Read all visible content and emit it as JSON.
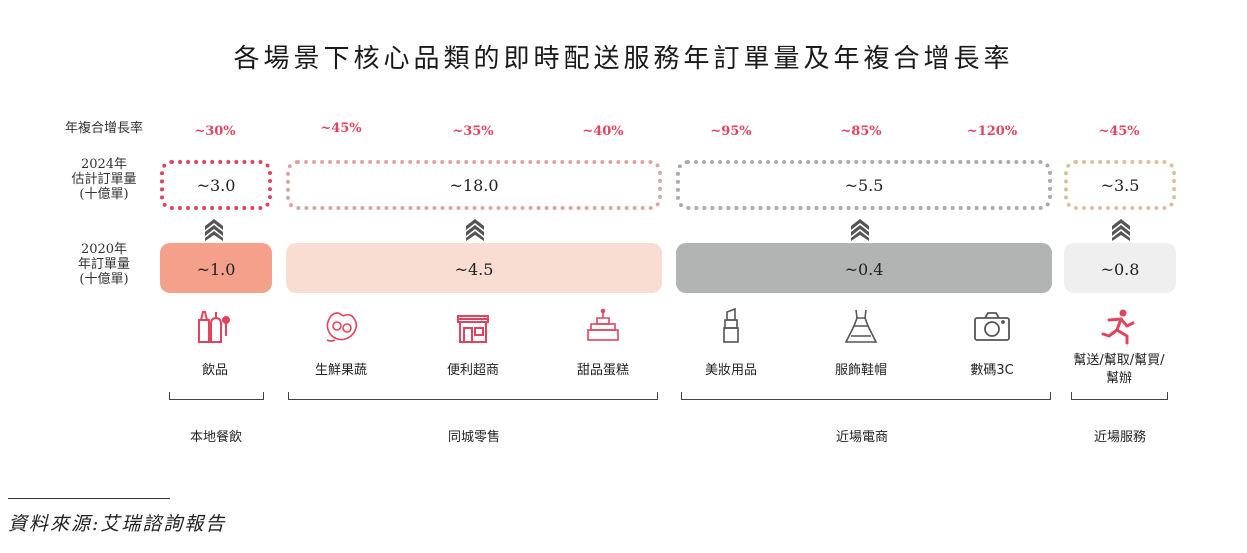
{
  "title": "各場景下核心品類的即時配送服務年訂單量及年複合增長率",
  "row_labels": {
    "cagr": "年複合增長率",
    "y2024": [
      "2024年",
      "估計訂單量",
      "(十億單)"
    ],
    "y2020": [
      "2020年",
      "年訂單量",
      "(十億單)"
    ]
  },
  "categories": [
    {
      "name": "飲品",
      "cagr": "~30%",
      "icon": "drinks-icon"
    },
    {
      "name": "生鮮果蔬",
      "cagr": "~45%",
      "icon": "fresh-produce-icon"
    },
    {
      "name": "便利超商",
      "cagr": "~35%",
      "icon": "convenience-store-icon"
    },
    {
      "name": "甜品蛋糕",
      "cagr": "~40%",
      "icon": "cake-icon"
    },
    {
      "name": "美妝用品",
      "cagr": "~95%",
      "icon": "lipstick-icon"
    },
    {
      "name": "服飾鞋帽",
      "cagr": "~85%",
      "icon": "dress-icon"
    },
    {
      "name": "數碼3C",
      "cagr": "~120%",
      "icon": "camera-icon"
    },
    {
      "name": "幫送/幫取/幫買/幫辦",
      "cagr": "~45%",
      "icon": "runner-icon"
    }
  ],
  "groups": [
    {
      "name": "本地餐飲",
      "est_2024": "~3.0",
      "orders_2020": "~1.0",
      "color": "#f4a08b"
    },
    {
      "name": "同城零售",
      "est_2024": "~18.0",
      "orders_2020": "~4.5",
      "color": "#f9ddd2"
    },
    {
      "name": "近場電商",
      "est_2024": "~5.5",
      "orders_2020": "~0.4",
      "color": "#b2b4b4"
    },
    {
      "name": "近場服務",
      "est_2024": "~3.5",
      "orders_2020": "~0.8",
      "color": "#efefef"
    }
  ],
  "box_colors": [
    "#e0455f",
    "#d9a7a0",
    "#aaaaaa",
    "#d9c29b"
  ],
  "source": "資料來源:艾瑞諮詢報告"
}
